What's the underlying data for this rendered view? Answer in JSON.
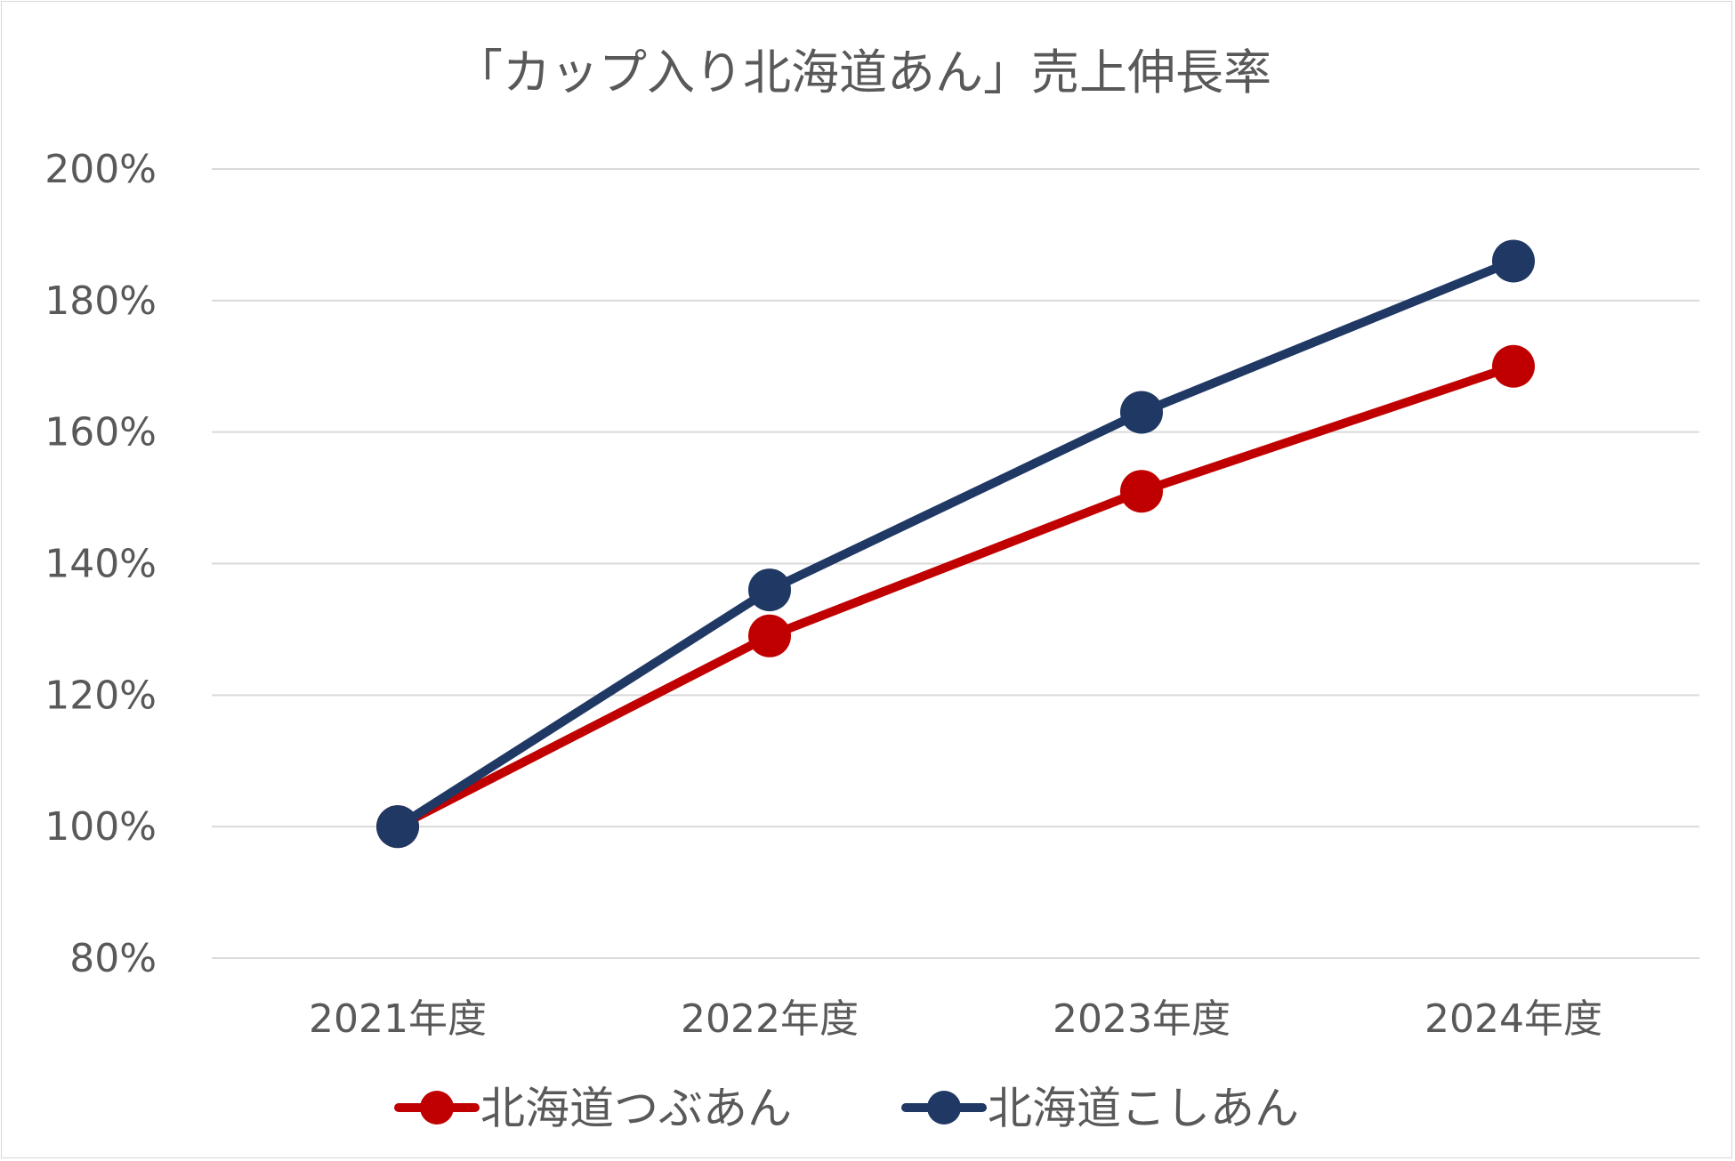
{
  "chart_data": {
    "type": "line",
    "title": "「カップ入り北海道あん」売上伸長率",
    "xlabel": "",
    "ylabel": "",
    "categories": [
      "2021年度",
      "2022年度",
      "2023年度",
      "2024年度"
    ],
    "ylim": [
      80,
      200
    ],
    "yticks": [
      80,
      100,
      120,
      140,
      160,
      180,
      200
    ],
    "ytick_labels": [
      "80%",
      "100%",
      "120%",
      "140%",
      "160%",
      "180%",
      "200%"
    ],
    "grid": true,
    "legend_position": "bottom",
    "series": [
      {
        "name": "北海道つぶあん",
        "color": "#c00000",
        "values": [
          100,
          129,
          151,
          170
        ]
      },
      {
        "name": "北海道こしあん",
        "color": "#1f3864",
        "values": [
          100,
          136,
          163,
          186
        ]
      }
    ]
  }
}
